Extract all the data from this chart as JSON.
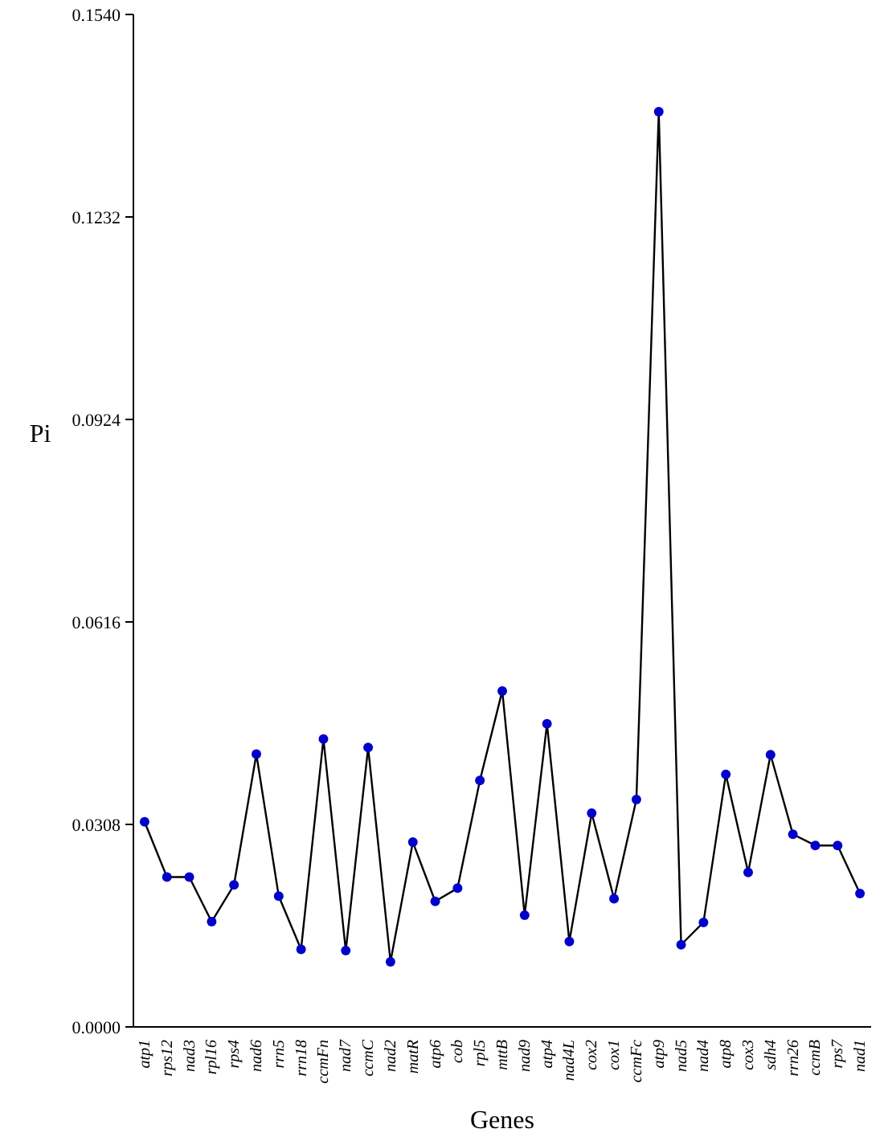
{
  "chart_data": {
    "type": "line",
    "xlabel": "Genes",
    "ylabel": "Pi",
    "categories": [
      "atp1",
      "rps12",
      "nad3",
      "rpl16",
      "rps4",
      "nad6",
      "rrn5",
      "rrn18",
      "ccmFn",
      "nad7",
      "ccmC",
      "nad2",
      "matR",
      "atp6",
      "cob",
      "rpl5",
      "mttB",
      "nad9",
      "atp4",
      "nad4L",
      "cox2",
      "cox1",
      "ccmFc",
      "atp9",
      "nad5",
      "nad4",
      "atp8",
      "cox3",
      "sdh4",
      "rrn26",
      "ccmB",
      "rps7",
      "nad1"
    ],
    "series": [
      {
        "color": "#0000cc",
        "values": [
          0.0312,
          0.0228,
          0.0228,
          0.016,
          0.0216,
          0.0415,
          0.0199,
          0.0118,
          0.0438,
          0.0116,
          0.0425,
          0.0099,
          0.0281,
          0.0191,
          0.0211,
          0.0375,
          0.0511,
          0.017,
          0.0461,
          0.013,
          0.0325,
          0.0195,
          0.0346,
          0.1392,
          0.0125,
          0.0159,
          0.0384,
          0.0235,
          0.0414,
          0.0293,
          0.0276,
          0.0276,
          0.0203
        ]
      }
    ],
    "ylim": [
      0,
      0.154
    ],
    "yticks": [
      {
        "value": 0,
        "label": "0.0000"
      },
      {
        "value": 0.0308,
        "label": "0.0308"
      },
      {
        "value": 0.0616,
        "label": "0.0616"
      },
      {
        "value": 0.0924,
        "label": "0.0924"
      },
      {
        "value": 0.1232,
        "label": "0.1232"
      },
      {
        "value": 0.154,
        "label": "0.1540"
      }
    ],
    "marker": "circle",
    "line_style": "solid"
  }
}
